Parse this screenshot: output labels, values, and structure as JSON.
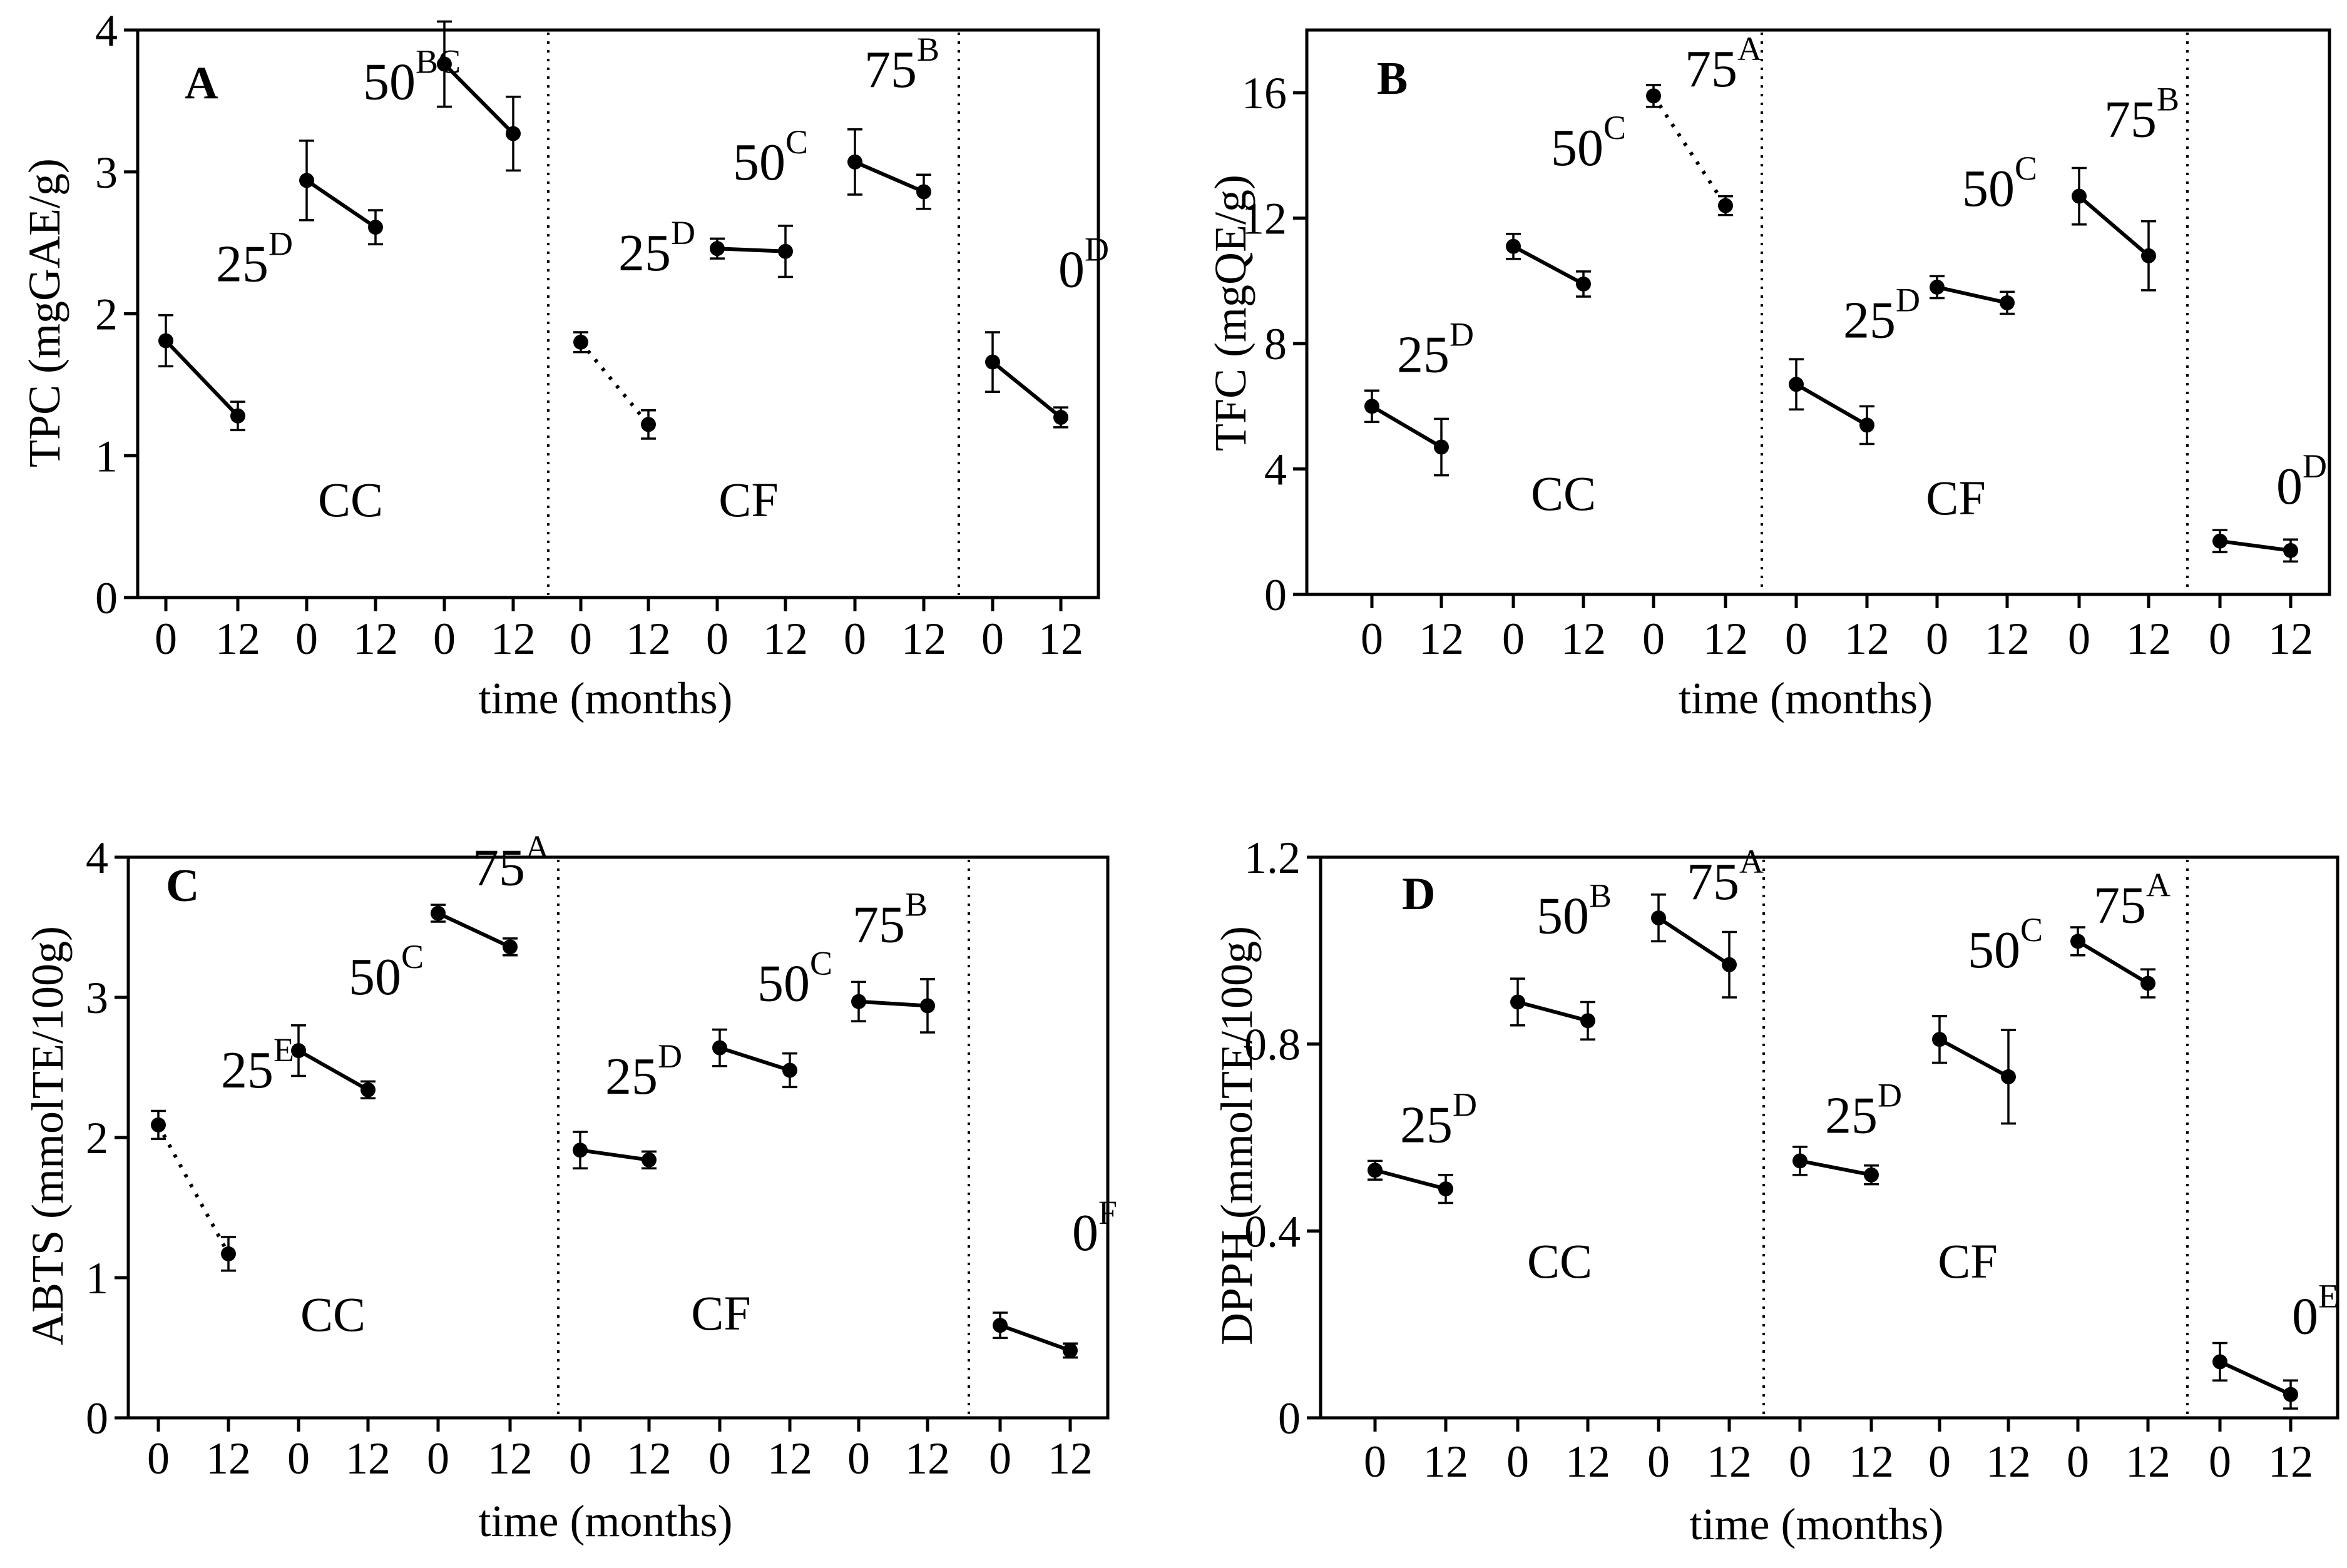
{
  "figure": {
    "panel_letters": [
      "A",
      "B",
      "C",
      "D"
    ]
  },
  "chart_data": [
    {
      "panel": "A",
      "type": "line",
      "ylabel": "TPC (mgGAE/g)",
      "xlabel": "time (months)",
      "ylim": [
        0,
        4
      ],
      "yticks": [
        0,
        1,
        2,
        3,
        4
      ],
      "ytick_labels": [
        "0",
        "1",
        "2",
        "3",
        "4"
      ],
      "x_tick_labels": [
        "0",
        "12",
        "0",
        "12",
        "0",
        "12",
        "0",
        "12",
        "0",
        "12",
        "0",
        "12",
        "0",
        "12"
      ],
      "group_labels": [
        "CC",
        "CF"
      ],
      "series": [
        {
          "name": "CC 25",
          "level": "25",
          "sup": "D",
          "values": [
            1.81,
            1.28
          ],
          "err": [
            0.18,
            0.1
          ],
          "style": "solid"
        },
        {
          "name": "CC 50",
          "level": "50",
          "sup": "BC",
          "values": [
            2.94,
            2.61
          ],
          "err": [
            0.28,
            0.12
          ],
          "style": "solid"
        },
        {
          "name": "CC 75",
          "level": "75",
          "sup": "A",
          "values": [
            3.76,
            3.27
          ],
          "err": [
            0.3,
            0.26
          ],
          "style": "solid"
        },
        {
          "name": "CF 25",
          "level": "25",
          "sup": "D",
          "values": [
            1.8,
            1.22
          ],
          "err": [
            0.07,
            0.1
          ],
          "style": "dotted"
        },
        {
          "name": "CF 50",
          "level": "50",
          "sup": "C",
          "values": [
            2.46,
            2.44
          ],
          "err": [
            0.07,
            0.18
          ],
          "style": "solid"
        },
        {
          "name": "CF 75",
          "level": "75",
          "sup": "B",
          "values": [
            3.07,
            2.86
          ],
          "err": [
            0.23,
            0.12
          ],
          "style": "solid"
        },
        {
          "name": "Control 0",
          "level": "0",
          "sup": "D",
          "values": [
            1.66,
            1.27
          ],
          "err": [
            0.21,
            0.07
          ],
          "style": "solid"
        }
      ]
    },
    {
      "panel": "B",
      "type": "line",
      "ylabel": "TFC (mgQE/g)",
      "xlabel": "time (months)",
      "ylim": [
        0,
        18
      ],
      "yticks": [
        0,
        4,
        8,
        12,
        16
      ],
      "ytick_labels": [
        "0",
        "4",
        "8",
        "12",
        "16"
      ],
      "x_tick_labels": [
        "0",
        "12",
        "0",
        "12",
        "0",
        "12",
        "0",
        "12",
        "0",
        "12",
        "0",
        "12",
        "0",
        "12"
      ],
      "group_labels": [
        "CC",
        "CF"
      ],
      "series": [
        {
          "name": "CC 25",
          "level": "25",
          "sup": "D",
          "values": [
            6.0,
            4.7
          ],
          "err": [
            0.5,
            0.9
          ],
          "style": "solid"
        },
        {
          "name": "CC 50",
          "level": "50",
          "sup": "C",
          "values": [
            11.1,
            9.9
          ],
          "err": [
            0.4,
            0.4
          ],
          "style": "solid"
        },
        {
          "name": "CC 75",
          "level": "75",
          "sup": "A",
          "values": [
            15.9,
            12.4
          ],
          "err": [
            0.35,
            0.3
          ],
          "style": "dotted"
        },
        {
          "name": "CF 25",
          "level": "25",
          "sup": "D",
          "values": [
            6.7,
            5.4
          ],
          "err": [
            0.8,
            0.6
          ],
          "style": "solid"
        },
        {
          "name": "CF 50",
          "level": "50",
          "sup": "C",
          "values": [
            9.8,
            9.3
          ],
          "err": [
            0.35,
            0.35
          ],
          "style": "solid"
        },
        {
          "name": "CF 75",
          "level": "75",
          "sup": "B",
          "values": [
            12.7,
            10.8
          ],
          "err": [
            0.9,
            1.1
          ],
          "style": "solid"
        },
        {
          "name": "Control 0",
          "level": "0",
          "sup": "D",
          "values": [
            1.7,
            1.4
          ],
          "err": [
            0.35,
            0.35
          ],
          "style": "solid"
        }
      ]
    },
    {
      "panel": "C",
      "type": "line",
      "ylabel": "ABTS (mmolTE/100g)",
      "xlabel": "time (months)",
      "ylim": [
        0,
        4
      ],
      "yticks": [
        0,
        1,
        2,
        3,
        4
      ],
      "ytick_labels": [
        "0",
        "1",
        "2",
        "3",
        "4"
      ],
      "x_tick_labels": [
        "0",
        "12",
        "0",
        "12",
        "0",
        "12",
        "0",
        "12",
        "0",
        "12",
        "0",
        "12",
        "0",
        "12"
      ],
      "group_labels": [
        "CC",
        "CF"
      ],
      "series": [
        {
          "name": "CC 25",
          "level": "25",
          "sup": "E",
          "values": [
            2.09,
            1.17
          ],
          "err": [
            0.1,
            0.12
          ],
          "style": "dotted"
        },
        {
          "name": "CC 50",
          "level": "50",
          "sup": "C",
          "values": [
            2.62,
            2.34
          ],
          "err": [
            0.18,
            0.06
          ],
          "style": "solid"
        },
        {
          "name": "CC 75",
          "level": "75",
          "sup": "A",
          "values": [
            3.6,
            3.36
          ],
          "err": [
            0.06,
            0.06
          ],
          "style": "solid"
        },
        {
          "name": "CF 25",
          "level": "25",
          "sup": "D",
          "values": [
            1.91,
            1.84
          ],
          "err": [
            0.13,
            0.06
          ],
          "style": "solid"
        },
        {
          "name": "CF 50",
          "level": "50",
          "sup": "C",
          "values": [
            2.64,
            2.48
          ],
          "err": [
            0.13,
            0.12
          ],
          "style": "solid"
        },
        {
          "name": "CF 75",
          "level": "75",
          "sup": "B",
          "values": [
            2.97,
            2.94
          ],
          "err": [
            0.14,
            0.19
          ],
          "style": "solid"
        },
        {
          "name": "Control 0",
          "level": "0",
          "sup": "F",
          "values": [
            0.66,
            0.48
          ],
          "err": [
            0.09,
            0.05
          ],
          "style": "solid"
        }
      ]
    },
    {
      "panel": "D",
      "type": "line",
      "ylabel": "DPPH (mmolTE/100g)",
      "xlabel": "time (months)",
      "ylim": [
        0,
        1.2
      ],
      "yticks": [
        0,
        0.4,
        0.8,
        1.2
      ],
      "ytick_labels": [
        "0",
        "0.4",
        "0.8",
        "1.2"
      ],
      "x_tick_labels": [
        "0",
        "12",
        "0",
        "12",
        "0",
        "12",
        "0",
        "12",
        "0",
        "12",
        "0",
        "12",
        "0",
        "12"
      ],
      "group_labels": [
        "CC",
        "CF"
      ],
      "series": [
        {
          "name": "CC 25",
          "level": "25",
          "sup": "D",
          "values": [
            0.53,
            0.49
          ],
          "err": [
            0.02,
            0.03
          ],
          "style": "solid"
        },
        {
          "name": "CC 50",
          "level": "50",
          "sup": "B",
          "values": [
            0.89,
            0.85
          ],
          "err": [
            0.05,
            0.04
          ],
          "style": "solid"
        },
        {
          "name": "CC 75",
          "level": "75",
          "sup": "A",
          "values": [
            1.07,
            0.97
          ],
          "err": [
            0.05,
            0.07
          ],
          "style": "solid"
        },
        {
          "name": "CF 25",
          "level": "25",
          "sup": "D",
          "values": [
            0.55,
            0.52
          ],
          "err": [
            0.03,
            0.02
          ],
          "style": "solid"
        },
        {
          "name": "CF 50",
          "level": "50",
          "sup": "C",
          "values": [
            0.81,
            0.73
          ],
          "err": [
            0.05,
            0.1
          ],
          "style": "solid"
        },
        {
          "name": "CF 75",
          "level": "75",
          "sup": "A",
          "values": [
            1.02,
            0.93
          ],
          "err": [
            0.03,
            0.03
          ],
          "style": "solid"
        },
        {
          "name": "Control 0",
          "level": "0",
          "sup": "E",
          "values": [
            0.12,
            0.05
          ],
          "err": [
            0.04,
            0.03
          ],
          "style": "solid"
        }
      ]
    }
  ]
}
